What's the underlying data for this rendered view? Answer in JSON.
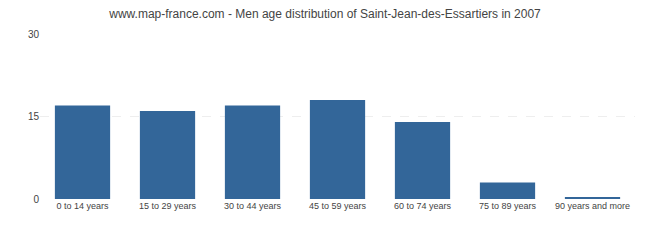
{
  "chart_data": {
    "type": "bar",
    "title": "www.map-france.com - Men age distribution of Saint-Jean-des-Essartiers in 2007",
    "categories": [
      "0 to 14 years",
      "15 to 29 years",
      "30 to 44 years",
      "45 to 59 years",
      "60 to 74 years",
      "75 to 89 years",
      "90 years and more"
    ],
    "values": [
      17,
      16,
      17,
      18,
      14,
      3,
      0.3
    ],
    "color": "#336699",
    "ylim": [
      0,
      30
    ],
    "yticks": [
      0,
      15,
      30
    ],
    "grid": true
  }
}
